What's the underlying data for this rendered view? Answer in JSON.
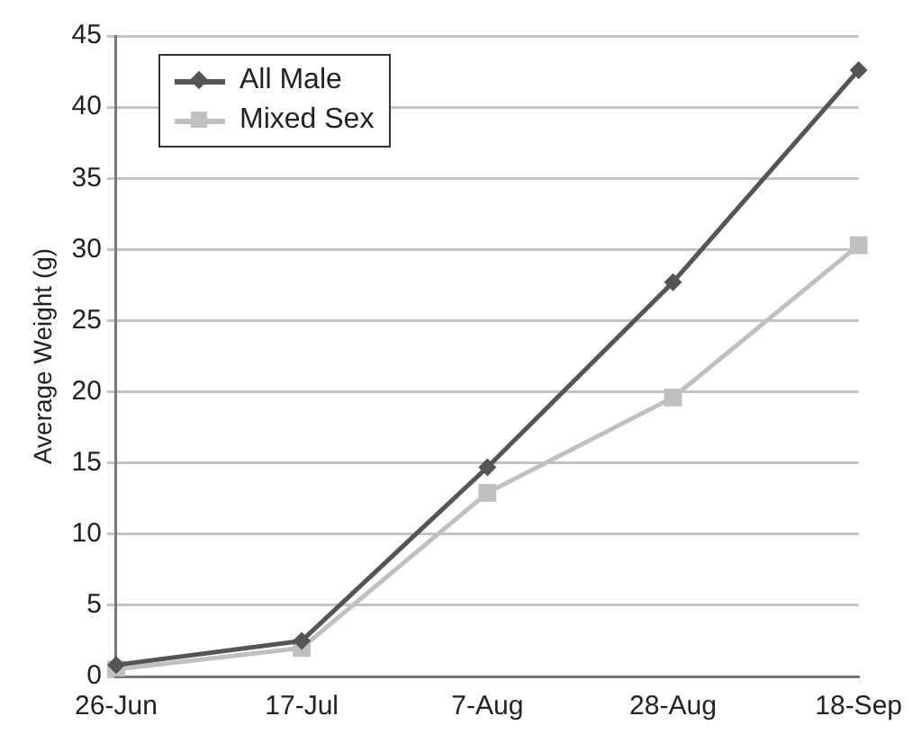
{
  "chart_data": {
    "type": "line",
    "ylabel": "Average Weight (g)",
    "categories": [
      "26-Jun",
      "17-Jul",
      "7-Aug",
      "28-Aug",
      "18-Sep"
    ],
    "series": [
      {
        "name": "All Male",
        "color": "#555555",
        "marker": "diamond",
        "values": [
          0.8,
          2.5,
          14.7,
          27.7,
          42.6
        ]
      },
      {
        "name": "Mixed Sex",
        "color": "#c0c0c0",
        "marker": "square",
        "values": [
          0.5,
          2.0,
          12.9,
          19.6,
          30.3
        ]
      }
    ],
    "ylim": [
      0,
      45
    ],
    "yticks": [
      0,
      5,
      10,
      15,
      20,
      25,
      30,
      35,
      40,
      45
    ],
    "grid": "y",
    "legend": "top left",
    "line_style": "solid"
  }
}
